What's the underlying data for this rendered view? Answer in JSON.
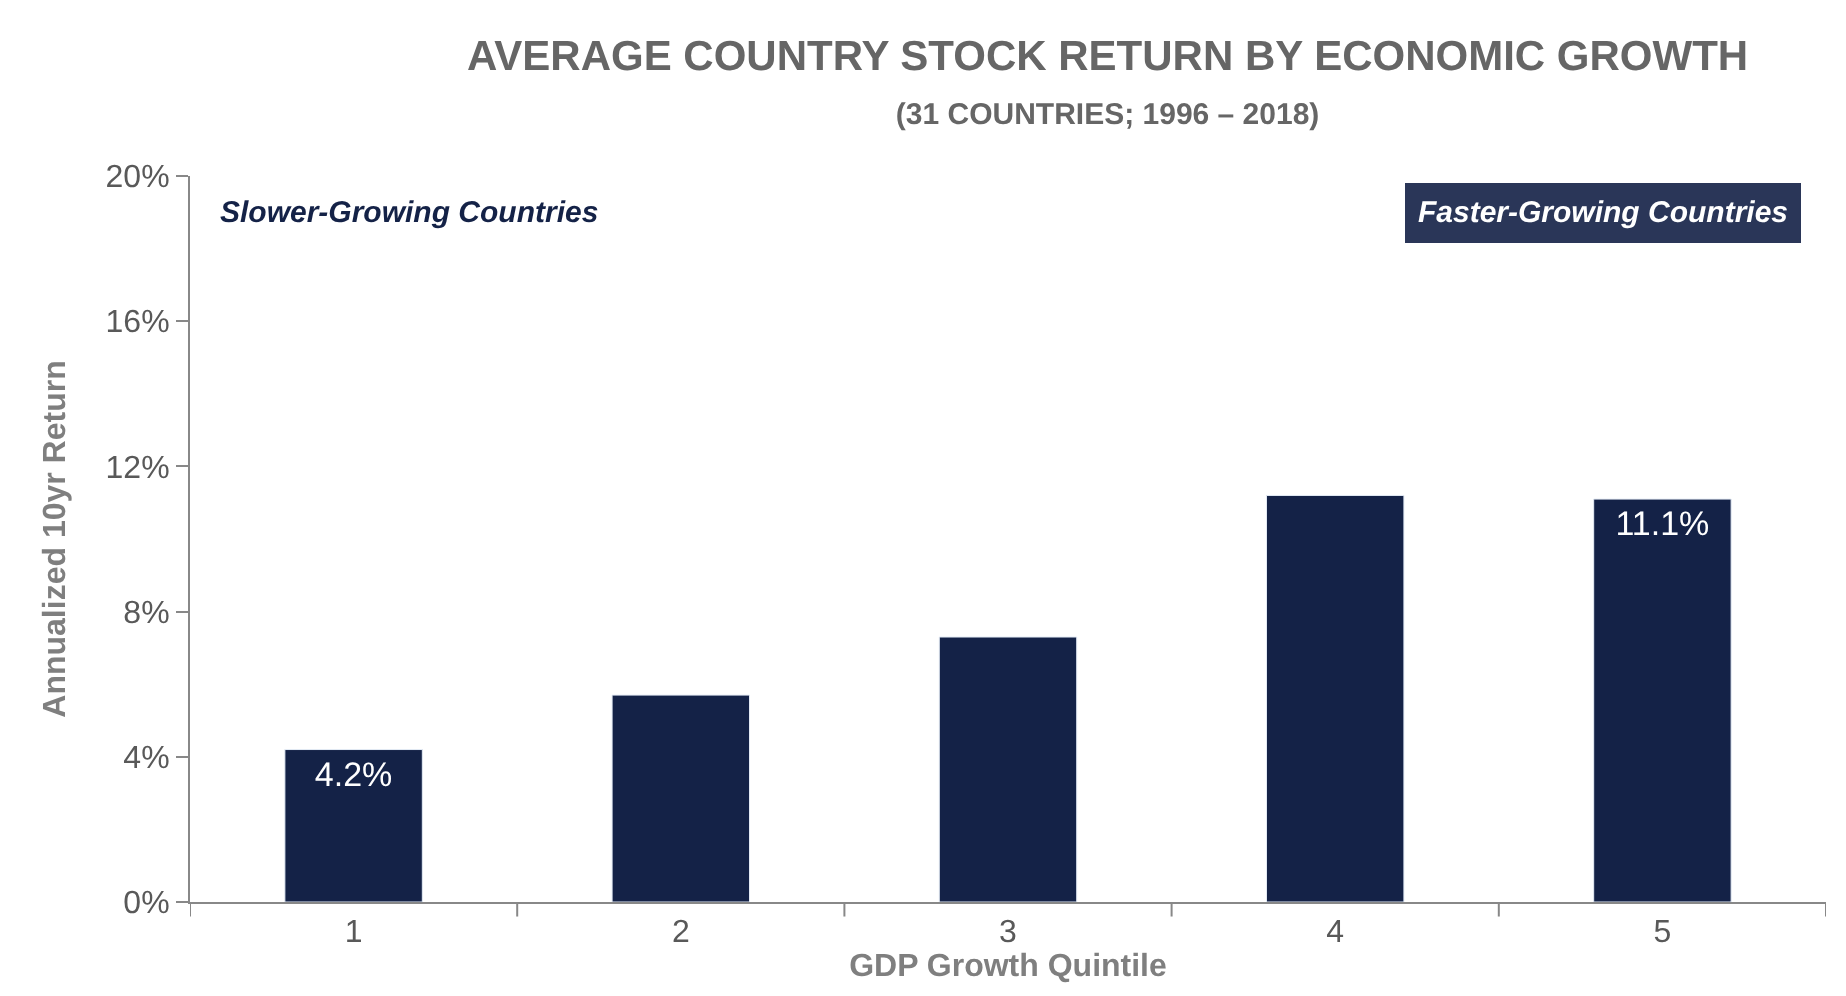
{
  "chart_data": {
    "type": "bar",
    "title": "AVERAGE COUNTRY STOCK RETURN BY ECONOMIC GROWTH",
    "subtitle": "(31 COUNTRIES; 1996 – 2018)",
    "xlabel": "GDP Growth Quintile",
    "ylabel": "Annualized 10yr Return",
    "categories": [
      "1",
      "2",
      "3",
      "4",
      "5"
    ],
    "values": [
      4.2,
      5.7,
      7.3,
      11.2,
      11.1
    ],
    "value_labels": [
      "4.2%",
      null,
      null,
      null,
      "11.1%"
    ],
    "color": "#142247",
    "ylim": [
      0,
      20
    ],
    "yticks": [
      {
        "value": 0,
        "label": "0%"
      },
      {
        "value": 4,
        "label": "4%"
      },
      {
        "value": 8,
        "label": "8%"
      },
      {
        "value": 12,
        "label": "12%"
      },
      {
        "value": 16,
        "label": "16%"
      },
      {
        "value": 20,
        "label": "20%"
      }
    ],
    "legend": false,
    "annotations": [
      "Slower-Growing Countries",
      "Faster-Growing Countries"
    ]
  }
}
